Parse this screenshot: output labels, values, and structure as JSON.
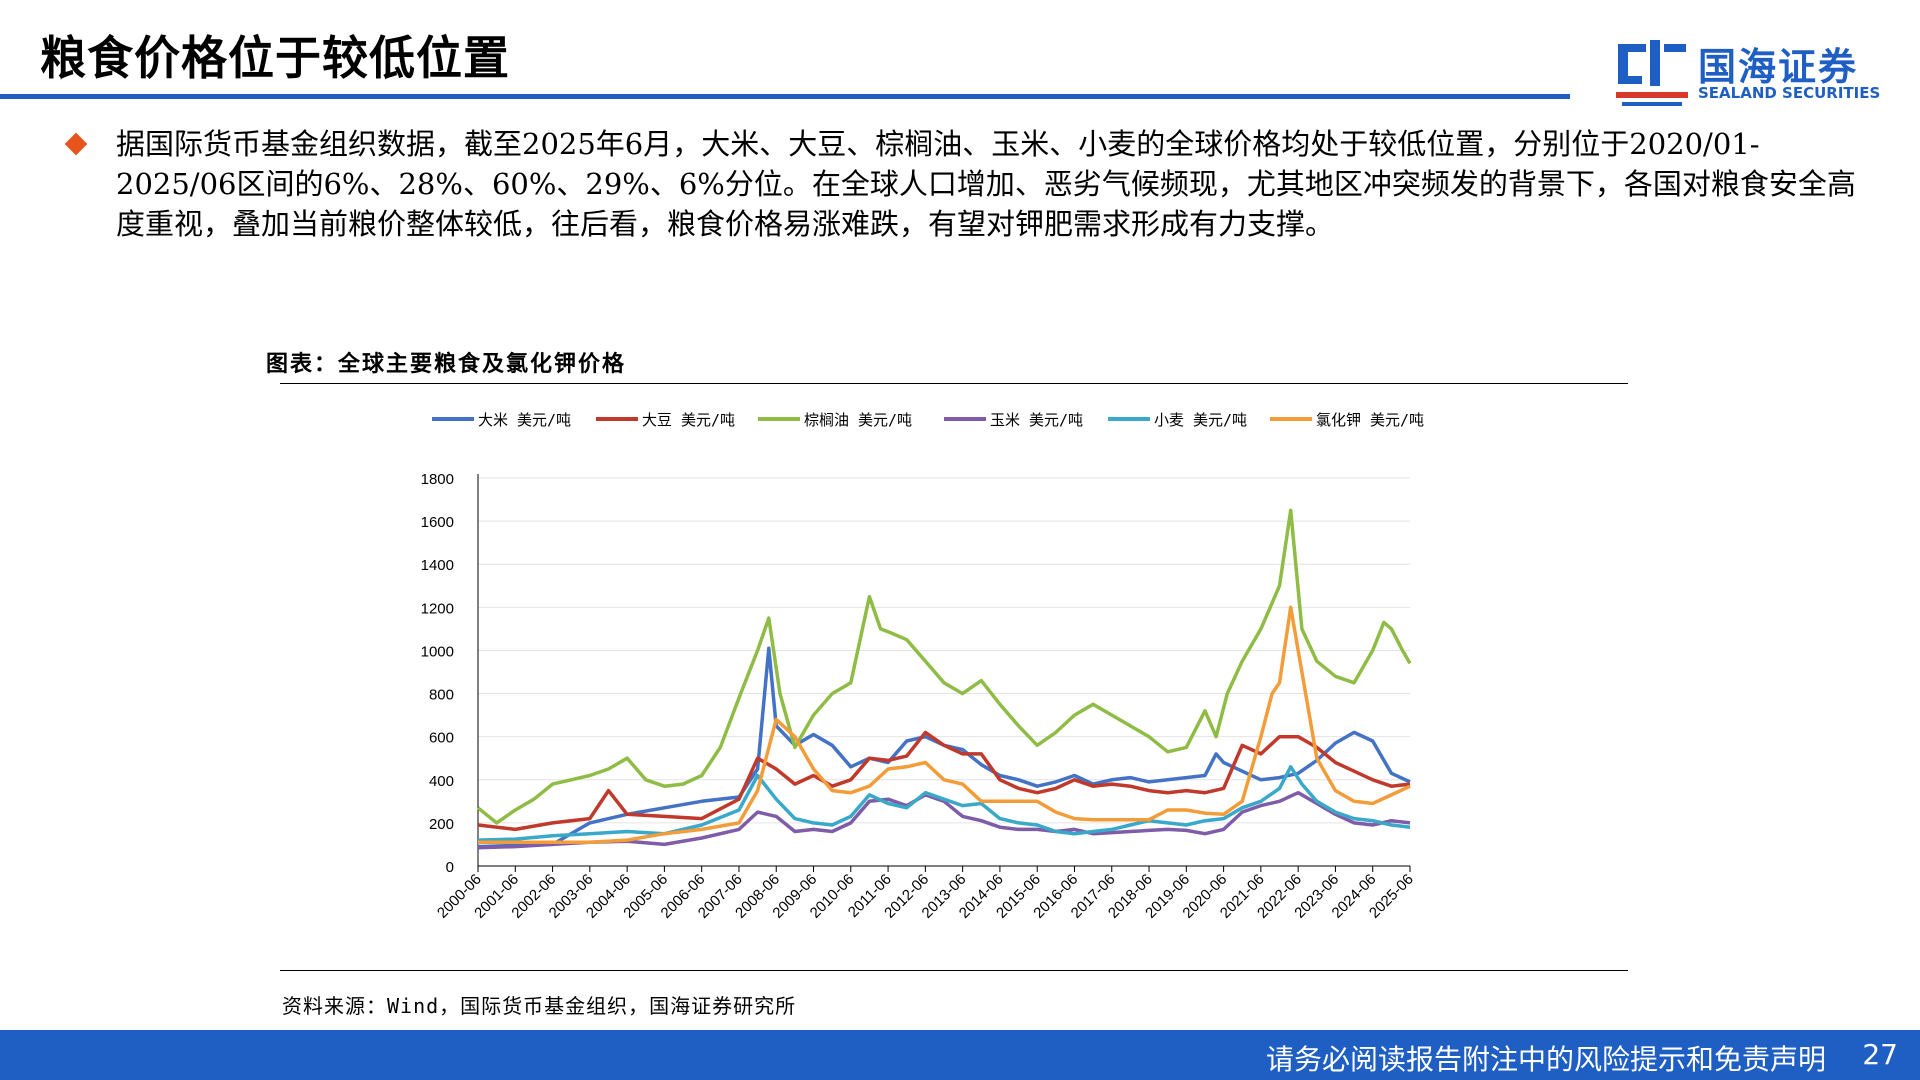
{
  "page": {
    "title": "粮食价格位于较低位置",
    "bullet": "据国际货币基金组织数据，截至2025年6月，大米、大豆、棕榈油、玉米、小麦的全球价格均处于较低位置，分别位于2020/01-2025/06区间的6%、28%、60%、29%、6%分位。在全球人口增加、恶劣气候频现，尤其地区冲突频发的背景下，各国对粮食安全高度重视，叠加当前粮价整体较低，往后看，粮食价格易涨难跌，有望对钾肥需求形成有力支撑。",
    "chart_title": "图表：全球主要粮食及氯化钾价格",
    "source": "资料来源：Wind，国际货币基金组织，国海证券研究所",
    "footer": "请务必阅读报告附注中的风险提示和免责声明",
    "page_number": "27"
  },
  "logo": {
    "cn": "国海证券",
    "en": "SEALAND SECURITIES"
  },
  "colors": {
    "accent": "#1f5fc4",
    "bullet": "#e8531e"
  },
  "chart_data": {
    "type": "line",
    "title": "图表：全球主要粮食及氯化钾价格",
    "xlabel": "",
    "ylabel": "",
    "ylim": [
      0,
      1800
    ],
    "yticks": [
      0,
      200,
      400,
      600,
      800,
      1000,
      1200,
      1400,
      1600,
      1800
    ],
    "categories": [
      "2000-06",
      "2001-06",
      "2002-06",
      "2003-06",
      "2004-06",
      "2005-06",
      "2006-06",
      "2007-06",
      "2008-06",
      "2009-06",
      "2010-06",
      "2011-06",
      "2012-06",
      "2013-06",
      "2014-06",
      "2015-06",
      "2016-06",
      "2017-06",
      "2018-06",
      "2019-06",
      "2020-06",
      "2021-06",
      "2022-06",
      "2023-06",
      "2024-06",
      "2025-06"
    ],
    "x_start": 2000.5,
    "x_end": 2025.5,
    "legend_position": "top",
    "grid": true,
    "series": [
      {
        "name": "大米 美元/吨",
        "color": "#4472c4",
        "points": [
          [
            2000.5,
            90
          ],
          [
            2001.5,
            95
          ],
          [
            2002.5,
            100
          ],
          [
            2003.5,
            200
          ],
          [
            2004.5,
            240
          ],
          [
            2005.5,
            270
          ],
          [
            2006.5,
            300
          ],
          [
            2007.5,
            320
          ],
          [
            2008.0,
            450
          ],
          [
            2008.3,
            1010
          ],
          [
            2008.5,
            650
          ],
          [
            2009.0,
            560
          ],
          [
            2009.5,
            610
          ],
          [
            2010.0,
            560
          ],
          [
            2010.5,
            460
          ],
          [
            2011.0,
            500
          ],
          [
            2011.5,
            480
          ],
          [
            2012.0,
            580
          ],
          [
            2012.5,
            600
          ],
          [
            2013.0,
            560
          ],
          [
            2013.5,
            540
          ],
          [
            2014.0,
            470
          ],
          [
            2014.5,
            420
          ],
          [
            2015.0,
            400
          ],
          [
            2015.5,
            370
          ],
          [
            2016.0,
            390
          ],
          [
            2016.5,
            420
          ],
          [
            2017.0,
            380
          ],
          [
            2017.5,
            400
          ],
          [
            2018.0,
            410
          ],
          [
            2018.5,
            390
          ],
          [
            2019.0,
            400
          ],
          [
            2019.5,
            410
          ],
          [
            2020.0,
            420
          ],
          [
            2020.3,
            520
          ],
          [
            2020.5,
            480
          ],
          [
            2021.0,
            440
          ],
          [
            2021.5,
            400
          ],
          [
            2022.0,
            410
          ],
          [
            2022.5,
            430
          ],
          [
            2023.0,
            490
          ],
          [
            2023.5,
            570
          ],
          [
            2024.0,
            620
          ],
          [
            2024.5,
            580
          ],
          [
            2025.0,
            430
          ],
          [
            2025.5,
            390
          ]
        ]
      },
      {
        "name": "大豆 美元/吨",
        "color": "#c0392b",
        "points": [
          [
            2000.5,
            190
          ],
          [
            2001.5,
            170
          ],
          [
            2002.5,
            200
          ],
          [
            2003.5,
            220
          ],
          [
            2004.0,
            350
          ],
          [
            2004.5,
            240
          ],
          [
            2005.5,
            230
          ],
          [
            2006.5,
            220
          ],
          [
            2007.5,
            310
          ],
          [
            2008.0,
            500
          ],
          [
            2008.5,
            450
          ],
          [
            2009.0,
            380
          ],
          [
            2009.5,
            420
          ],
          [
            2010.0,
            370
          ],
          [
            2010.5,
            400
          ],
          [
            2011.0,
            500
          ],
          [
            2011.5,
            490
          ],
          [
            2012.0,
            510
          ],
          [
            2012.5,
            620
          ],
          [
            2013.0,
            560
          ],
          [
            2013.5,
            520
          ],
          [
            2014.0,
            520
          ],
          [
            2014.5,
            400
          ],
          [
            2015.0,
            360
          ],
          [
            2015.5,
            340
          ],
          [
            2016.0,
            360
          ],
          [
            2016.5,
            400
          ],
          [
            2017.0,
            370
          ],
          [
            2017.5,
            380
          ],
          [
            2018.0,
            370
          ],
          [
            2018.5,
            350
          ],
          [
            2019.0,
            340
          ],
          [
            2019.5,
            350
          ],
          [
            2020.0,
            340
          ],
          [
            2020.5,
            360
          ],
          [
            2021.0,
            560
          ],
          [
            2021.5,
            520
          ],
          [
            2022.0,
            600
          ],
          [
            2022.5,
            600
          ],
          [
            2023.0,
            550
          ],
          [
            2023.5,
            480
          ],
          [
            2024.0,
            440
          ],
          [
            2024.5,
            400
          ],
          [
            2025.0,
            370
          ],
          [
            2025.5,
            380
          ]
        ]
      },
      {
        "name": "棕榈油 美元/吨",
        "color": "#8fbc45",
        "points": [
          [
            2000.5,
            270
          ],
          [
            2001.0,
            200
          ],
          [
            2001.5,
            260
          ],
          [
            2002.0,
            310
          ],
          [
            2002.5,
            380
          ],
          [
            2003.0,
            400
          ],
          [
            2003.5,
            420
          ],
          [
            2004.0,
            450
          ],
          [
            2004.5,
            500
          ],
          [
            2005.0,
            400
          ],
          [
            2005.5,
            370
          ],
          [
            2006.0,
            380
          ],
          [
            2006.5,
            420
          ],
          [
            2007.0,
            550
          ],
          [
            2007.5,
            780
          ],
          [
            2008.0,
            1000
          ],
          [
            2008.3,
            1150
          ],
          [
            2008.6,
            800
          ],
          [
            2009.0,
            550
          ],
          [
            2009.5,
            700
          ],
          [
            2010.0,
            800
          ],
          [
            2010.5,
            850
          ],
          [
            2011.0,
            1250
          ],
          [
            2011.3,
            1100
          ],
          [
            2011.6,
            1080
          ],
          [
            2012.0,
            1050
          ],
          [
            2012.5,
            950
          ],
          [
            2013.0,
            850
          ],
          [
            2013.5,
            800
          ],
          [
            2014.0,
            860
          ],
          [
            2014.5,
            750
          ],
          [
            2015.0,
            650
          ],
          [
            2015.5,
            560
          ],
          [
            2016.0,
            620
          ],
          [
            2016.5,
            700
          ],
          [
            2017.0,
            750
          ],
          [
            2017.5,
            700
          ],
          [
            2018.0,
            650
          ],
          [
            2018.5,
            600
          ],
          [
            2019.0,
            530
          ],
          [
            2019.5,
            550
          ],
          [
            2020.0,
            720
          ],
          [
            2020.3,
            600
          ],
          [
            2020.6,
            800
          ],
          [
            2021.0,
            950
          ],
          [
            2021.5,
            1100
          ],
          [
            2022.0,
            1300
          ],
          [
            2022.3,
            1650
          ],
          [
            2022.6,
            1100
          ],
          [
            2023.0,
            950
          ],
          [
            2023.5,
            880
          ],
          [
            2024.0,
            850
          ],
          [
            2024.5,
            1000
          ],
          [
            2024.8,
            1130
          ],
          [
            2025.0,
            1100
          ],
          [
            2025.3,
            1000
          ],
          [
            2025.5,
            940
          ]
        ]
      },
      {
        "name": "玉米 美元/吨",
        "color": "#7e5ca8",
        "points": [
          [
            2000.5,
            85
          ],
          [
            2001.5,
            90
          ],
          [
            2002.5,
            100
          ],
          [
            2003.5,
            110
          ],
          [
            2004.5,
            115
          ],
          [
            2005.5,
            100
          ],
          [
            2006.5,
            130
          ],
          [
            2007.5,
            170
          ],
          [
            2008.0,
            250
          ],
          [
            2008.5,
            230
          ],
          [
            2009.0,
            160
          ],
          [
            2009.5,
            170
          ],
          [
            2010.0,
            160
          ],
          [
            2010.5,
            200
          ],
          [
            2011.0,
            300
          ],
          [
            2011.5,
            310
          ],
          [
            2012.0,
            280
          ],
          [
            2012.5,
            330
          ],
          [
            2013.0,
            300
          ],
          [
            2013.5,
            230
          ],
          [
            2014.0,
            210
          ],
          [
            2014.5,
            180
          ],
          [
            2015.0,
            170
          ],
          [
            2015.5,
            170
          ],
          [
            2016.0,
            160
          ],
          [
            2016.5,
            170
          ],
          [
            2017.0,
            150
          ],
          [
            2017.5,
            155
          ],
          [
            2018.0,
            160
          ],
          [
            2018.5,
            165
          ],
          [
            2019.0,
            170
          ],
          [
            2019.5,
            165
          ],
          [
            2020.0,
            150
          ],
          [
            2020.5,
            170
          ],
          [
            2021.0,
            250
          ],
          [
            2021.5,
            280
          ],
          [
            2022.0,
            300
          ],
          [
            2022.5,
            340
          ],
          [
            2023.0,
            290
          ],
          [
            2023.5,
            240
          ],
          [
            2024.0,
            200
          ],
          [
            2024.5,
            190
          ],
          [
            2025.0,
            210
          ],
          [
            2025.5,
            200
          ]
        ]
      },
      {
        "name": "小麦 美元/吨",
        "color": "#3aa8c8",
        "points": [
          [
            2000.5,
            120
          ],
          [
            2001.5,
            125
          ],
          [
            2002.5,
            140
          ],
          [
            2003.5,
            150
          ],
          [
            2004.5,
            160
          ],
          [
            2005.5,
            150
          ],
          [
            2006.5,
            190
          ],
          [
            2007.5,
            260
          ],
          [
            2008.0,
            420
          ],
          [
            2008.5,
            310
          ],
          [
            2009.0,
            220
          ],
          [
            2009.5,
            200
          ],
          [
            2010.0,
            190
          ],
          [
            2010.5,
            230
          ],
          [
            2011.0,
            330
          ],
          [
            2011.5,
            290
          ],
          [
            2012.0,
            270
          ],
          [
            2012.5,
            340
          ],
          [
            2013.0,
            310
          ],
          [
            2013.5,
            280
          ],
          [
            2014.0,
            290
          ],
          [
            2014.5,
            220
          ],
          [
            2015.0,
            200
          ],
          [
            2015.5,
            190
          ],
          [
            2016.0,
            160
          ],
          [
            2016.5,
            150
          ],
          [
            2017.0,
            160
          ],
          [
            2017.5,
            170
          ],
          [
            2018.0,
            190
          ],
          [
            2018.5,
            210
          ],
          [
            2019.0,
            200
          ],
          [
            2019.5,
            190
          ],
          [
            2020.0,
            210
          ],
          [
            2020.5,
            220
          ],
          [
            2021.0,
            270
          ],
          [
            2021.5,
            300
          ],
          [
            2022.0,
            360
          ],
          [
            2022.3,
            460
          ],
          [
            2022.6,
            380
          ],
          [
            2023.0,
            300
          ],
          [
            2023.5,
            250
          ],
          [
            2024.0,
            220
          ],
          [
            2024.5,
            210
          ],
          [
            2025.0,
            190
          ],
          [
            2025.5,
            180
          ]
        ]
      },
      {
        "name": "氯化钾 美元/吨",
        "color": "#f39c3a",
        "points": [
          [
            2000.5,
            110
          ],
          [
            2001.5,
            110
          ],
          [
            2002.5,
            110
          ],
          [
            2003.5,
            110
          ],
          [
            2004.5,
            120
          ],
          [
            2005.5,
            150
          ],
          [
            2006.5,
            170
          ],
          [
            2007.5,
            200
          ],
          [
            2008.0,
            350
          ],
          [
            2008.5,
            680
          ],
          [
            2009.0,
            600
          ],
          [
            2009.5,
            450
          ],
          [
            2010.0,
            350
          ],
          [
            2010.5,
            340
          ],
          [
            2011.0,
            370
          ],
          [
            2011.5,
            450
          ],
          [
            2012.0,
            460
          ],
          [
            2012.5,
            480
          ],
          [
            2013.0,
            400
          ],
          [
            2013.5,
            380
          ],
          [
            2014.0,
            300
          ],
          [
            2014.5,
            300
          ],
          [
            2015.0,
            300
          ],
          [
            2015.5,
            300
          ],
          [
            2016.0,
            250
          ],
          [
            2016.5,
            220
          ],
          [
            2017.0,
            215
          ],
          [
            2017.5,
            215
          ],
          [
            2018.0,
            215
          ],
          [
            2018.5,
            215
          ],
          [
            2019.0,
            260
          ],
          [
            2019.5,
            260
          ],
          [
            2020.0,
            245
          ],
          [
            2020.5,
            240
          ],
          [
            2021.0,
            300
          ],
          [
            2021.5,
            600
          ],
          [
            2021.8,
            800
          ],
          [
            2022.0,
            850
          ],
          [
            2022.3,
            1200
          ],
          [
            2022.6,
            900
          ],
          [
            2023.0,
            500
          ],
          [
            2023.5,
            350
          ],
          [
            2024.0,
            300
          ],
          [
            2024.5,
            290
          ],
          [
            2025.0,
            330
          ],
          [
            2025.5,
            370
          ]
        ]
      }
    ]
  }
}
